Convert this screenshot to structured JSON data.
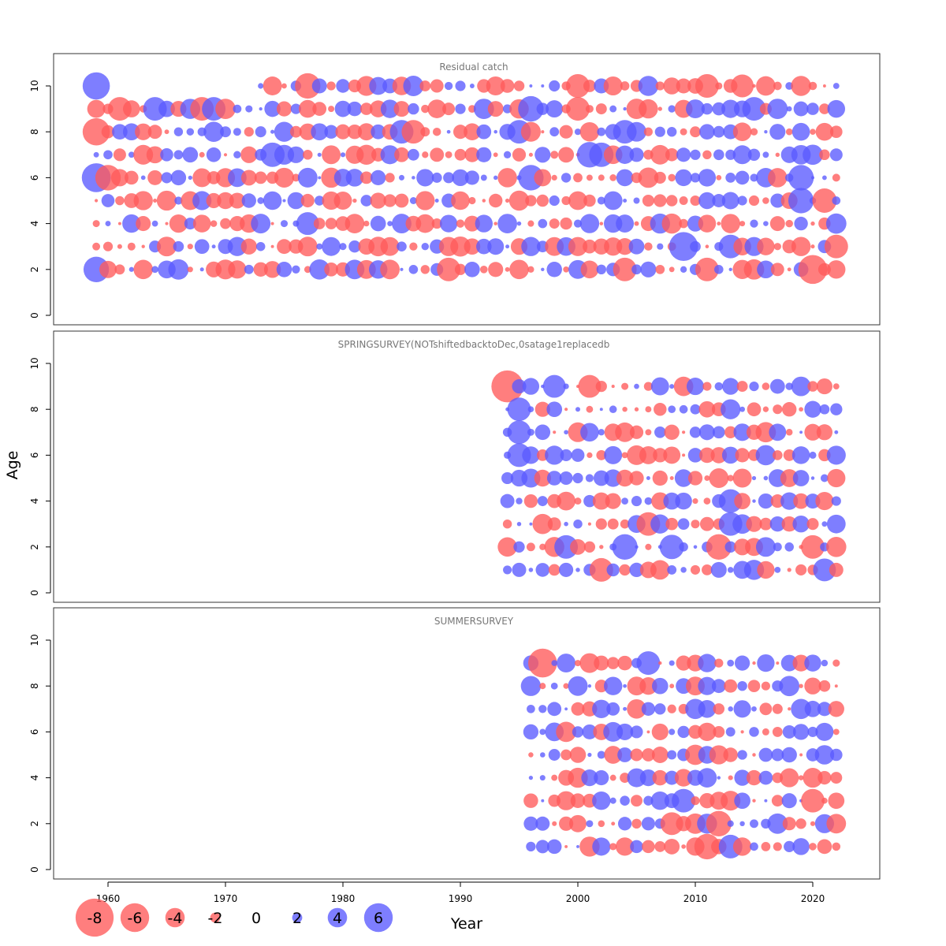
{
  "chart_data": {
    "type": "scatter",
    "subtype": "bubble",
    "xlabel": "Year",
    "ylabel": "Age",
    "xlim": [
      1955,
      2025.5
    ],
    "x_ticks": [
      1960,
      1970,
      1980,
      1990,
      2000,
      2010,
      2020
    ],
    "x_tick_labels": [
      "1960",
      "1970",
      "1980",
      "1990",
      "2000",
      "2010",
      "2020"
    ],
    "ylim": [
      -0.3,
      11
    ],
    "y_ticks": [
      0,
      2,
      4,
      6,
      8,
      10
    ],
    "y_tick_labels": [
      "0",
      "2",
      "4",
      "6",
      "8",
      "10"
    ],
    "colors": {
      "negative": "#ff5a5a",
      "positive": "#5a5aff"
    },
    "legend": {
      "position": "bottom-left",
      "values": [
        -8,
        -6,
        -4,
        -2,
        0,
        2,
        4,
        6
      ],
      "labels": [
        "-8",
        "-6",
        "-4",
        "-2",
        "0",
        "2",
        "4",
        "6"
      ]
    },
    "panels": [
      {
        "title": "Residual catch",
        "years": [
          1959,
          2022
        ],
        "ages": [
          2,
          3,
          4,
          5,
          6,
          7,
          8,
          9,
          10
        ],
        "missing_age10_years": [
          1960,
          1961,
          1962,
          1963,
          1964,
          1965,
          1966,
          1967,
          1968,
          1969,
          1970,
          1971,
          1972
        ],
        "highlights": [
          {
            "year": 1959,
            "age": 10,
            "residual": 4.0
          },
          {
            "year": 1977,
            "age": 10,
            "residual": -3.5
          },
          {
            "year": 2000,
            "age": 10,
            "residual": -3.0
          },
          {
            "year": 2011,
            "age": 10,
            "residual": -3.0
          },
          {
            "year": 2014,
            "age": 10,
            "residual": -2.8
          },
          {
            "year": 1961,
            "age": 9,
            "residual": -3.0
          },
          {
            "year": 1964,
            "age": 9,
            "residual": 3.0
          },
          {
            "year": 1968,
            "age": 9,
            "residual": -3.0
          },
          {
            "year": 1969,
            "age": 9,
            "residual": 3.0
          },
          {
            "year": 1996,
            "age": 9,
            "residual": 3.5
          },
          {
            "year": 2000,
            "age": 9,
            "residual": -3.0
          },
          {
            "year": 2015,
            "age": 9,
            "residual": 3.0
          },
          {
            "year": 1959,
            "age": 8,
            "residual": -4.0
          },
          {
            "year": 1985,
            "age": 8,
            "residual": 3.0
          },
          {
            "year": 1986,
            "age": 8,
            "residual": -3.0
          },
          {
            "year": 1995,
            "age": 8,
            "residual": 3.0
          },
          {
            "year": 2004,
            "age": 8,
            "residual": 3.0
          },
          {
            "year": 1974,
            "age": 7,
            "residual": 3.2
          },
          {
            "year": 2001,
            "age": 7,
            "residual": 3.5
          },
          {
            "year": 2002,
            "age": 7,
            "residual": 3.2
          },
          {
            "year": 1959,
            "age": 6,
            "residual": 4.5
          },
          {
            "year": 1960,
            "age": 6,
            "residual": -3.5
          },
          {
            "year": 1996,
            "age": 6,
            "residual": 3.5
          },
          {
            "year": 2019,
            "age": 6,
            "residual": 3.5
          },
          {
            "year": 2019,
            "age": 5,
            "residual": 3.5
          },
          {
            "year": 2021,
            "age": 5,
            "residual": -3.2
          },
          {
            "year": 1977,
            "age": 4,
            "residual": 2.8
          },
          {
            "year": 2009,
            "age": 3,
            "residual": 4.5
          },
          {
            "year": 2013,
            "age": 3,
            "residual": 3.0
          },
          {
            "year": 2022,
            "age": 3,
            "residual": -3.0
          },
          {
            "year": 1959,
            "age": 2,
            "residual": 3.5
          },
          {
            "year": 1989,
            "age": 2,
            "residual": -3.0
          },
          {
            "year": 2004,
            "age": 2,
            "residual": -3.0
          },
          {
            "year": 2011,
            "age": 2,
            "residual": -3.0
          },
          {
            "year": 2020,
            "age": 2,
            "residual": -4.5
          }
        ]
      },
      {
        "title": "SPRINGSURVEY(NOTshiftedbacktoDec,0satage1replacedb",
        "years": [
          1994,
          2022
        ],
        "ages": [
          1,
          2,
          3,
          4,
          5,
          6,
          7,
          8,
          9
        ],
        "highlights": [
          {
            "year": 1994,
            "age": 9,
            "residual": -5.5
          },
          {
            "year": 1998,
            "age": 9,
            "residual": 2.8
          },
          {
            "year": 2001,
            "age": 9,
            "residual": -2.8
          },
          {
            "year": 1995,
            "age": 8,
            "residual": 3.0
          },
          {
            "year": 1995,
            "age": 7,
            "residual": 3.0
          },
          {
            "year": 1995,
            "age": 6,
            "residual": 3.0
          },
          {
            "year": 2006,
            "age": 3,
            "residual": -3.0
          },
          {
            "year": 2013,
            "age": 3,
            "residual": 3.0
          },
          {
            "year": 2013,
            "age": 4,
            "residual": 3.0
          },
          {
            "year": 2004,
            "age": 2,
            "residual": 3.5
          },
          {
            "year": 2008,
            "age": 2,
            "residual": 3.2
          },
          {
            "year": 2012,
            "age": 2,
            "residual": -3.5
          },
          {
            "year": 2020,
            "age": 2,
            "residual": -3.0
          },
          {
            "year": 1999,
            "age": 2,
            "residual": 3.0
          },
          {
            "year": 2002,
            "age": 1,
            "residual": -3.0
          },
          {
            "year": 2021,
            "age": 1,
            "residual": 2.8
          }
        ]
      },
      {
        "title": "SUMMERSURVEY",
        "years": [
          1996,
          2022
        ],
        "ages": [
          1,
          2,
          3,
          4,
          5,
          6,
          7,
          8,
          9
        ],
        "highlights": [
          {
            "year": 1997,
            "age": 9,
            "residual": -4.5
          },
          {
            "year": 2006,
            "age": 9,
            "residual": 3.0
          },
          {
            "year": 2012,
            "age": 2,
            "residual": -3.5
          },
          {
            "year": 2011,
            "age": 1,
            "residual": -3.5
          },
          {
            "year": 2013,
            "age": 1,
            "residual": 3.0
          },
          {
            "year": 2009,
            "age": 3,
            "residual": 3.0
          },
          {
            "year": 2020,
            "age": 3,
            "residual": -3.0
          },
          {
            "year": 2008,
            "age": 2,
            "residual": -2.8
          }
        ]
      }
    ]
  }
}
